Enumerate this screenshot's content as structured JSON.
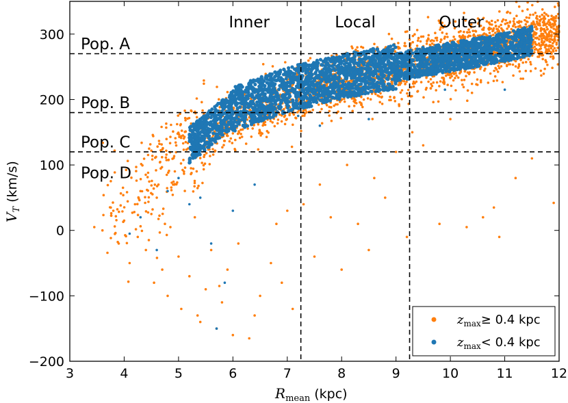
{
  "chart_data": {
    "type": "scatter",
    "xlabel": "R",
    "xlabel_sub": "mean",
    "xlabel_unit": "(kpc)",
    "ylabel": "V",
    "ylabel_sub": "T",
    "ylabel_unit": "(km/s)",
    "xlim": [
      3,
      12
    ],
    "ylim": [
      -200,
      350
    ],
    "xticks": [
      3,
      4,
      5,
      6,
      7,
      8,
      9,
      10,
      11,
      12
    ],
    "yticks": [
      -200,
      -100,
      0,
      100,
      200,
      300
    ],
    "vlines": [
      7.25,
      9.25
    ],
    "hlines": [
      270,
      180,
      120
    ],
    "regions": [
      {
        "label": "Inner",
        "x": 6.3
      },
      {
        "label": "Local",
        "x": 8.25
      },
      {
        "label": "Outer",
        "x": 10.2
      }
    ],
    "populations": [
      {
        "label": "Pop. A",
        "y": 285
      },
      {
        "label": "Pop. B",
        "y": 195
      },
      {
        "label": "Pop. C",
        "y": 135
      },
      {
        "label": "Pop. D",
        "y": 88
      }
    ],
    "series": [
      {
        "name": "z_max ≥ 0.4 kpc",
        "legend_math": "z",
        "legend_sub": "max",
        "legend_rest": "≥ 0.4 kpc",
        "color": "#ff7f0e",
        "band": [
          [
            3.4,
            20
          ],
          [
            4.5,
            75
          ],
          [
            5,
            120
          ],
          [
            6,
            165
          ],
          [
            7,
            200
          ],
          [
            8,
            225
          ],
          [
            9,
            245
          ],
          [
            10,
            265
          ],
          [
            11,
            285
          ],
          [
            12,
            300
          ]
        ],
        "scatter_points": [
          [
            3.45,
            5
          ],
          [
            3.6,
            0
          ],
          [
            3.8,
            30
          ],
          [
            3.9,
            -20
          ],
          [
            4.0,
            15
          ],
          [
            4.1,
            -50
          ],
          [
            4.2,
            40
          ],
          [
            4.25,
            -10
          ],
          [
            4.3,
            60
          ],
          [
            4.4,
            -30
          ],
          [
            4.5,
            25
          ],
          [
            4.55,
            -80
          ],
          [
            4.6,
            50
          ],
          [
            4.7,
            -60
          ],
          [
            4.75,
            10
          ],
          [
            4.8,
            -100
          ],
          [
            4.9,
            70
          ],
          [
            5.0,
            -40
          ],
          [
            5.05,
            -120
          ],
          [
            5.1,
            90
          ],
          [
            5.2,
            -70
          ],
          [
            5.3,
            20
          ],
          [
            5.35,
            -130
          ],
          [
            5.5,
            -90
          ],
          [
            5.6,
            -30
          ],
          [
            5.7,
            -150
          ],
          [
            5.8,
            -110
          ],
          [
            5.9,
            -60
          ],
          [
            6.0,
            -160
          ],
          [
            6.1,
            -20
          ],
          [
            6.3,
            -165
          ],
          [
            6.5,
            -100
          ],
          [
            6.7,
            -50
          ],
          [
            6.9,
            -80
          ],
          [
            7.1,
            -120
          ],
          [
            7.3,
            40
          ],
          [
            7.5,
            -40
          ],
          [
            7.6,
            70
          ],
          [
            7.8,
            20
          ],
          [
            8.0,
            -60
          ],
          [
            8.1,
            100
          ],
          [
            8.3,
            10
          ],
          [
            8.5,
            -30
          ],
          [
            8.6,
            80
          ],
          [
            8.8,
            50
          ],
          [
            9.0,
            120
          ],
          [
            9.2,
            -10
          ],
          [
            9.3,
            150
          ],
          [
            9.5,
            130
          ],
          [
            9.8,
            10
          ],
          [
            10.0,
            170
          ],
          [
            10.3,
            5
          ],
          [
            10.6,
            20
          ],
          [
            10.8,
            35
          ],
          [
            10.9,
            -10
          ],
          [
            11.2,
            80
          ],
          [
            11.5,
            110
          ],
          [
            11.9,
            42
          ],
          [
            6.8,
            10
          ],
          [
            7.0,
            30
          ],
          [
            6.4,
            -130
          ],
          [
            5.4,
            -140
          ],
          [
            4.85,
            5
          ],
          [
            5.75,
            -85
          ]
        ]
      },
      {
        "name": "z_max < 0.4 kpc",
        "legend_math": "z",
        "legend_sub": "max",
        "legend_rest": "< 0.4 kpc",
        "color": "#1f77b4",
        "band": [
          [
            5.2,
            130
          ],
          [
            6,
            185
          ],
          [
            7,
            215
          ],
          [
            8,
            235
          ],
          [
            9,
            250
          ],
          [
            10,
            265
          ],
          [
            11,
            280
          ],
          [
            11.5,
            290
          ]
        ],
        "scatter_points": [
          [
            4.1,
            -5
          ],
          [
            4.3,
            20
          ],
          [
            4.6,
            -30
          ],
          [
            4.8,
            60
          ],
          [
            5.0,
            80
          ],
          [
            5.2,
            40
          ],
          [
            5.4,
            50
          ],
          [
            5.6,
            -20
          ],
          [
            5.7,
            -150
          ],
          [
            5.85,
            -80
          ],
          [
            6.0,
            30
          ],
          [
            6.4,
            70
          ],
          [
            7.6,
            160
          ],
          [
            7.2,
            175
          ],
          [
            8.5,
            170
          ],
          [
            9.9,
            215
          ],
          [
            11.0,
            215
          ]
        ]
      }
    ]
  }
}
